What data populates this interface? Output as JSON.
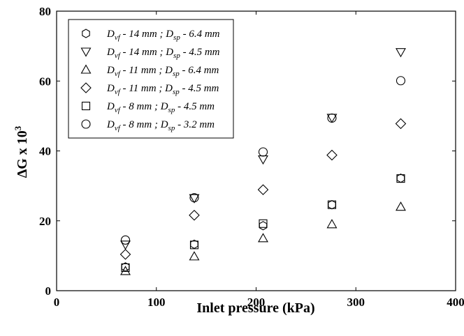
{
  "chart_data": {
    "type": "scatter",
    "title": "",
    "xlabel": "Inlet pressure (kPa)",
    "ylabel_parts": {
      "base": "ΔG x 10",
      "exp": "3"
    },
    "xlim": [
      0,
      400
    ],
    "ylim": [
      0,
      80
    ],
    "xticks": [
      0,
      100,
      200,
      300,
      400
    ],
    "yticks": [
      0,
      20,
      40,
      60,
      80
    ],
    "grid": false,
    "legend_position": "top-left",
    "series": [
      {
        "marker": "hexagon",
        "legend": {
          "d1": "D",
          "s1": "vf",
          "mid1": " - 14 mm ; ",
          "d2": "D",
          "s2": "sp",
          "mid2": " - 6.4 mm"
        },
        "points": [
          [
            69,
            6.8
          ],
          [
            138,
            13.3
          ],
          [
            207,
            18.6
          ],
          [
            276,
            24.6
          ],
          [
            345,
            32.2
          ]
        ]
      },
      {
        "marker": "triangle-down",
        "legend": {
          "d1": "D",
          "s1": "vf",
          "mid1": " - 14 mm ; ",
          "d2": "D",
          "s2": "sp",
          "mid2": " - 4.5 mm"
        },
        "points": [
          [
            69,
            13.2
          ],
          [
            138,
            26.5
          ],
          [
            207,
            37.6
          ],
          [
            276,
            49.5
          ],
          [
            345,
            68.3
          ]
        ]
      },
      {
        "marker": "triangle-up",
        "legend": {
          "d1": "D",
          "s1": "vf",
          "mid1": " - 11 mm ; ",
          "d2": "D",
          "s2": "sp",
          "mid2": " - 6.4 mm"
        },
        "points": [
          [
            69,
            5.6
          ],
          [
            138,
            9.8
          ],
          [
            207,
            15
          ],
          [
            276,
            19
          ],
          [
            345,
            24
          ]
        ]
      },
      {
        "marker": "diamond",
        "legend": {
          "d1": "D",
          "s1": "vf",
          "mid1": " - 11 mm ; ",
          "d2": "D",
          "s2": "sp",
          "mid2": " - 4.5 mm"
        },
        "points": [
          [
            69,
            10.4
          ],
          [
            138,
            21.6
          ],
          [
            207,
            28.9
          ],
          [
            276,
            38.8
          ],
          [
            345,
            47.8
          ]
        ]
      },
      {
        "marker": "square",
        "legend": {
          "d1": "D",
          "s1": "vf",
          "mid1": " - 8 mm ; ",
          "d2": "D",
          "s2": "sp",
          "mid2": " - 4.5 mm"
        },
        "points": [
          [
            69,
            6.6
          ],
          [
            138,
            13.1
          ],
          [
            207,
            19.2
          ],
          [
            276,
            24.6
          ],
          [
            345,
            32.1
          ]
        ]
      },
      {
        "marker": "circle",
        "legend": {
          "d1": "D",
          "s1": "vf",
          "mid1": " - 8 mm ; ",
          "d2": "D",
          "s2": "sp",
          "mid2": " - 3.2 mm"
        },
        "points": [
          [
            69,
            14.5
          ],
          [
            138,
            26.6
          ],
          [
            207,
            39.7
          ],
          [
            276,
            49.4
          ],
          [
            345,
            60.1
          ]
        ]
      }
    ]
  }
}
